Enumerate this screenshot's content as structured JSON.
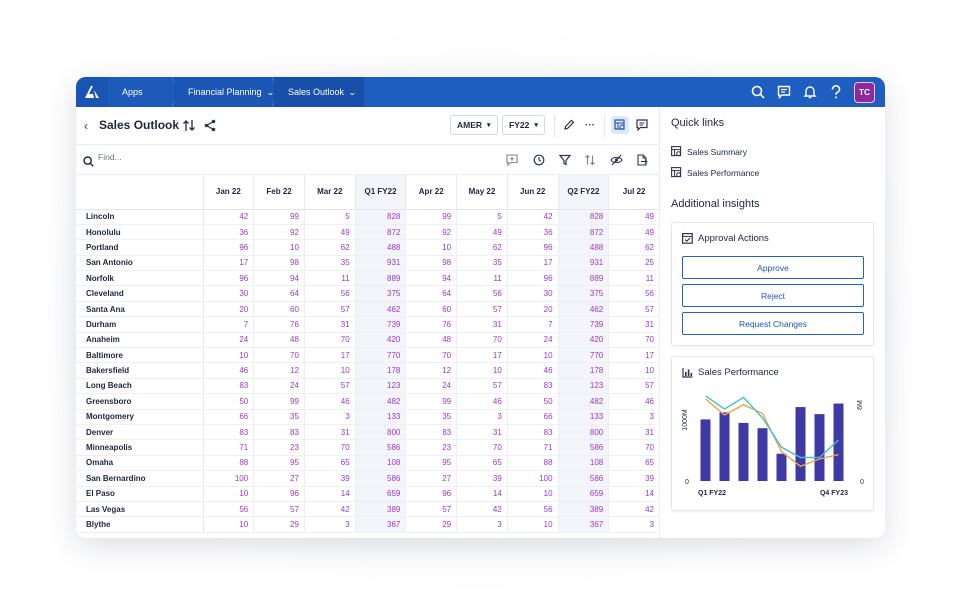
{
  "topbar": {
    "breadcrumbs": [
      {
        "label": "Apps",
        "chevron": "⌄"
      },
      {
        "label": "Financial Planning",
        "chevron": "⌄"
      },
      {
        "label": "Sales Outlook",
        "chevron": "⌄"
      }
    ],
    "icons": [
      "search-icon",
      "chat-icon",
      "bell-icon",
      "help-icon"
    ],
    "avatar_initials": "TC",
    "colors": {
      "bar": "#1e5ec0",
      "avatar": "#8c2a9e"
    }
  },
  "page": {
    "title": "Sales Outlook",
    "filters": [
      {
        "label": "AMER"
      },
      {
        "label": "FY22"
      }
    ],
    "more_label": "···",
    "search_placeholder": "Find..."
  },
  "grid": {
    "columns": [
      "Jan 22",
      "Feb 22",
      "Mar 22",
      "Q1 FY22",
      "Apr 22",
      "May 22",
      "Jun 22",
      "Q2 FY22",
      "Jul 22"
    ],
    "quarter_columns": [
      3,
      7
    ],
    "rows": [
      {
        "name": "Lincoln",
        "values": [
          "42",
          "99",
          "5",
          "828",
          "99",
          "5",
          "42",
          "828",
          "49"
        ]
      },
      {
        "name": "Honolulu",
        "values": [
          "36",
          "92",
          "49",
          "872",
          "92",
          "49",
          "36",
          "872",
          "49"
        ]
      },
      {
        "name": "Portland",
        "values": [
          "96",
          "10",
          "62",
          "488",
          "10",
          "62",
          "96",
          "488",
          "62"
        ]
      },
      {
        "name": "San Antonio",
        "values": [
          "17",
          "98",
          "35",
          "931",
          "98",
          "35",
          "17",
          "931",
          "25"
        ]
      },
      {
        "name": "Norfolk",
        "values": [
          "96",
          "94",
          "11",
          "889",
          "94",
          "11",
          "96",
          "889",
          "11"
        ]
      },
      {
        "name": "Cleveland",
        "values": [
          "30",
          "64",
          "56",
          "375",
          "64",
          "56",
          "30",
          "375",
          "56"
        ]
      },
      {
        "name": "Santa Ana",
        "values": [
          "20",
          "60",
          "57",
          "462",
          "60",
          "57",
          "20",
          "462",
          "57"
        ]
      },
      {
        "name": "Durham",
        "values": [
          "7",
          "76",
          "31",
          "739",
          "76",
          "31",
          "7",
          "739",
          "31"
        ]
      },
      {
        "name": "Anaheim",
        "values": [
          "24",
          "48",
          "70",
          "420",
          "48",
          "70",
          "24",
          "420",
          "70"
        ]
      },
      {
        "name": "Baltimore",
        "values": [
          "10",
          "70",
          "17",
          "770",
          "70",
          "17",
          "10",
          "770",
          "17"
        ]
      },
      {
        "name": "Bakersfield",
        "values": [
          "46",
          "12",
          "10",
          "178",
          "12",
          "10",
          "46",
          "178",
          "10"
        ]
      },
      {
        "name": "Long Beach",
        "values": [
          "83",
          "24",
          "57",
          "123",
          "24",
          "57",
          "83",
          "123",
          "57"
        ]
      },
      {
        "name": "Greensboro",
        "values": [
          "50",
          "99",
          "46",
          "482",
          "99",
          "46",
          "50",
          "482",
          "46"
        ]
      },
      {
        "name": "Montgomery",
        "values": [
          "66",
          "35",
          "3",
          "133",
          "35",
          "3",
          "66",
          "133",
          "3"
        ]
      },
      {
        "name": "Denver",
        "values": [
          "83",
          "83",
          "31",
          "800",
          "83",
          "31",
          "83",
          "800",
          "31"
        ]
      },
      {
        "name": "Minneapolis",
        "values": [
          "71",
          "23",
          "70",
          "586",
          "23",
          "70",
          "71",
          "586",
          "70"
        ]
      },
      {
        "name": "Omaha",
        "values": [
          "88",
          "95",
          "65",
          "108",
          "95",
          "65",
          "88",
          "108",
          "65"
        ]
      },
      {
        "name": "San Bernardino",
        "values": [
          "100",
          "27",
          "39",
          "586",
          "27",
          "39",
          "100",
          "586",
          "39"
        ]
      },
      {
        "name": "El Paso",
        "values": [
          "10",
          "96",
          "14",
          "659",
          "96",
          "14",
          "10",
          "659",
          "14"
        ]
      },
      {
        "name": "Las Vegas",
        "values": [
          "56",
          "57",
          "42",
          "389",
          "57",
          "42",
          "56",
          "389",
          "42"
        ]
      },
      {
        "name": "Blythe",
        "values": [
          "10",
          "29",
          "3",
          "367",
          "29",
          "3",
          "10",
          "367",
          "3"
        ]
      }
    ]
  },
  "quick_links": {
    "title": "Quick links",
    "items": [
      {
        "label": "Sales Summary"
      },
      {
        "label": "Sales Performance"
      }
    ]
  },
  "insights": {
    "title": "Additional insights",
    "approval": {
      "title": "Approval Actions",
      "buttons": [
        {
          "label": "Approve"
        },
        {
          "label": "Reject"
        },
        {
          "label": "Request Changes"
        }
      ]
    },
    "performance": {
      "title": "Sales Performance"
    }
  },
  "chart_data": {
    "type": "bar",
    "title": "Sales Performance",
    "left_axis": {
      "max_label": "1000M",
      "min_label": "0",
      "ylim": [
        0,
        1000
      ]
    },
    "right_axis": {
      "max_label": "6M",
      "min_label": "0",
      "ylim": [
        0,
        6
      ]
    },
    "x_labels": [
      "Q1 FY22",
      "Q4 FY23"
    ],
    "bars": [
      700,
      780,
      660,
      600,
      310,
      840,
      760,
      880
    ],
    "lines": [
      {
        "color": "#f0a53a",
        "values": [
          5.6,
          4.5,
          5.2,
          4.6,
          2.0,
          1.0,
          1.5,
          1.8
        ]
      },
      {
        "color": "#3fc0d8",
        "values": [
          5.8,
          4.9,
          5.7,
          4.3,
          2.3,
          1.6,
          1.6,
          2.8
        ]
      }
    ],
    "colors": {
      "bar": "#3f39a5"
    }
  }
}
